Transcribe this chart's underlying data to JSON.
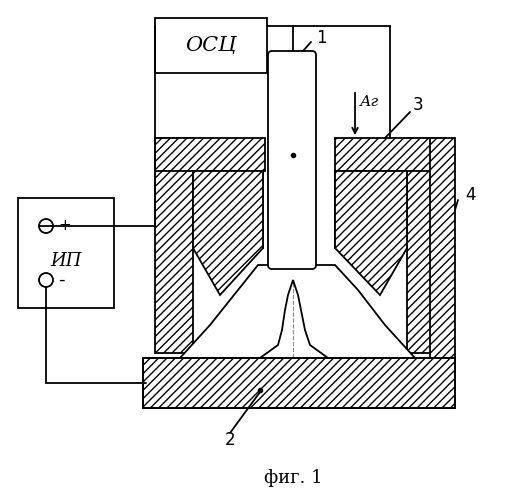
{
  "bg_color": "#ffffff",
  "line_color": "#000000",
  "labels": {
    "osc": "ОСЦ",
    "ip": "ИП",
    "plus": "+",
    "minus": "-",
    "ar": "Аг",
    "num1": "1",
    "num2": "2",
    "num3": "3",
    "num4": "4",
    "fig": "фиг. 1"
  },
  "figsize": [
    5.14,
    5.0
  ],
  "dpi": 100
}
